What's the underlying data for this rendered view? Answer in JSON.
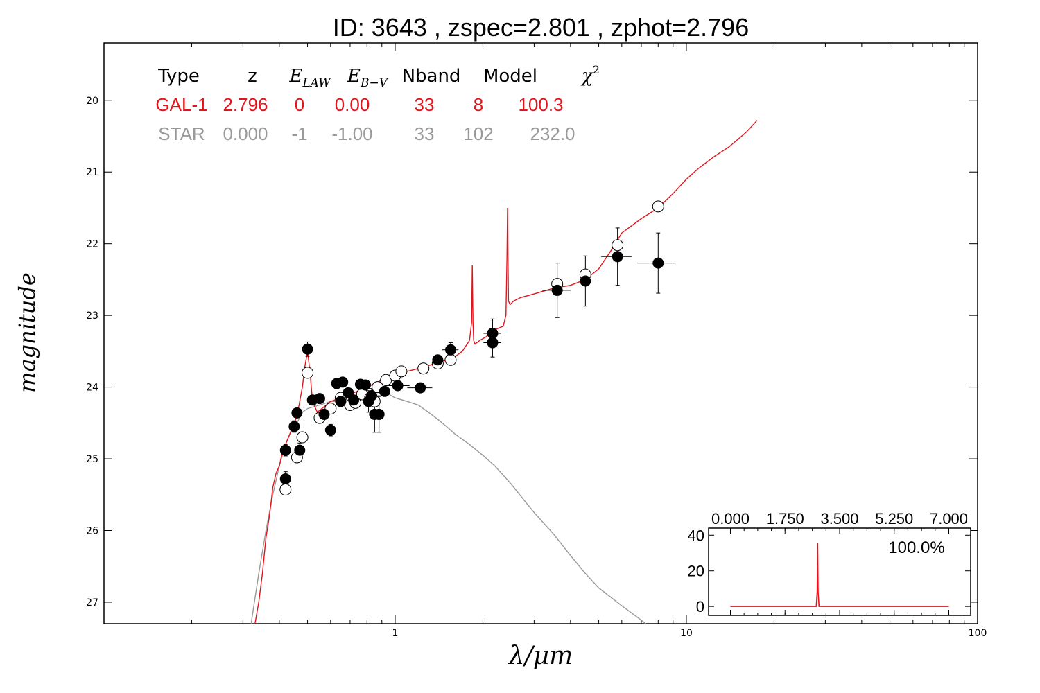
{
  "title": "ID:  3643  , zspec=2.801 , zphot=2.796",
  "colors": {
    "galaxy": "#e3141b",
    "star": "#999999",
    "axis": "#000000"
  },
  "table": {
    "headers": [
      {
        "key": "type",
        "text": "Type",
        "math": false
      },
      {
        "key": "z",
        "text": "z",
        "math": false
      },
      {
        "key": "elaw",
        "base": "E",
        "sub": "LAW",
        "math": true
      },
      {
        "key": "ebv",
        "base": "E",
        "sub": "B−V",
        "math": true
      },
      {
        "key": "nband",
        "text": "Nband",
        "math": false
      },
      {
        "key": "model",
        "text": "Model",
        "math": false
      },
      {
        "key": "chi2",
        "base": "χ",
        "sup": "2",
        "math": true
      }
    ],
    "rows": [
      {
        "name": "galaxy-row",
        "color": "#e3141b",
        "cells": [
          "GAL-1",
          "2.796",
          "0",
          "0.00",
          "33",
          "8",
          "100.3"
        ]
      },
      {
        "name": "star-row",
        "color": "#999999",
        "cells": [
          "STAR",
          "0.000",
          "-1",
          "-1.00",
          "33",
          "102",
          "232.0"
        ]
      }
    ]
  },
  "chart_data": [
    {
      "type": "scatter",
      "xlabel": "λ/μm",
      "ylabel": "magnitude",
      "xscale": "log",
      "xlim": [
        0.1,
        100
      ],
      "ylim": [
        27.3,
        19.2
      ],
      "xticks": [
        {
          "v": 1,
          "label": "1"
        },
        {
          "v": 10,
          "label": "10"
        },
        {
          "v": 100,
          "label": "100"
        }
      ],
      "yticks": [
        20,
        21,
        22,
        23,
        24,
        25,
        26,
        27
      ],
      "series": [
        {
          "kind": "galaxy-model",
          "color": "#e3141b",
          "x": [
            0.33,
            0.34,
            0.35,
            0.36,
            0.37,
            0.38,
            0.39,
            0.4,
            0.41,
            0.42,
            0.43,
            0.44,
            0.45,
            0.46,
            0.47,
            0.48,
            0.49,
            0.5,
            0.51,
            0.52,
            0.54,
            0.56,
            0.6,
            0.65,
            0.7,
            0.75,
            0.8,
            0.85,
            0.9,
            1.0,
            1.05,
            1.1,
            1.15,
            1.2,
            1.3,
            1.4,
            1.5,
            1.6,
            1.7,
            1.8,
            1.83,
            1.84,
            1.85,
            1.86,
            1.88,
            1.95,
            2.05,
            2.2,
            2.35,
            2.4,
            2.42,
            2.43,
            2.44,
            2.45,
            2.48,
            2.55,
            2.7,
            3.0,
            3.5,
            4.0,
            4.5,
            5.0,
            5.5,
            6.0,
            7.0,
            8.0,
            9.0,
            10.0,
            11.0,
            12.5,
            14.0,
            16.0,
            17.5
          ],
          "y": [
            27.3,
            27.0,
            26.6,
            26.1,
            25.8,
            25.4,
            25.2,
            25.1,
            24.9,
            24.8,
            24.7,
            24.6,
            24.5,
            24.4,
            24.2,
            24.0,
            23.7,
            23.5,
            23.8,
            24.2,
            24.35,
            24.3,
            24.2,
            24.15,
            24.1,
            24.05,
            24.0,
            23.95,
            23.9,
            23.85,
            23.8,
            23.78,
            23.76,
            23.74,
            23.7,
            23.66,
            23.62,
            23.58,
            23.5,
            23.35,
            23.1,
            22.3,
            23.1,
            23.35,
            23.4,
            23.35,
            23.3,
            23.2,
            23.15,
            23.0,
            22.2,
            21.5,
            22.2,
            22.8,
            22.85,
            22.8,
            22.75,
            22.7,
            22.62,
            22.58,
            22.5,
            22.35,
            22.1,
            21.85,
            21.65,
            21.5,
            21.3,
            21.1,
            20.95,
            20.78,
            20.65,
            20.45,
            20.28
          ]
        },
        {
          "kind": "star-model",
          "color": "#999999",
          "x": [
            0.32,
            0.34,
            0.36,
            0.38,
            0.4,
            0.42,
            0.44,
            0.46,
            0.48,
            0.5,
            0.55,
            0.6,
            0.65,
            0.7,
            0.75,
            0.8,
            0.85,
            0.9,
            0.95,
            1.0,
            1.1,
            1.2,
            1.3,
            1.4,
            1.5,
            1.6,
            1.8,
            2.0,
            2.2,
            2.5,
            2.8,
            3.0,
            3.5,
            4.0,
            4.5,
            5.0,
            6.0,
            7.0,
            7.5
          ],
          "y": [
            27.3,
            26.6,
            26.0,
            25.5,
            25.1,
            24.8,
            24.6,
            24.5,
            24.35,
            24.3,
            24.25,
            24.2,
            24.2,
            24.2,
            24.15,
            24.12,
            24.12,
            24.12,
            24.1,
            24.15,
            24.2,
            24.25,
            24.35,
            24.45,
            24.55,
            24.65,
            24.8,
            24.95,
            25.1,
            25.35,
            25.6,
            25.75,
            26.05,
            26.35,
            26.6,
            26.8,
            27.05,
            27.25,
            27.35
          ]
        },
        {
          "kind": "observed",
          "fill": "#000000",
          "points": [
            {
              "x": 0.42,
              "y": 24.88,
              "xerr": 0.01,
              "yerr": 0.08
            },
            {
              "x": 0.42,
              "y": 25.28,
              "xerr": 0.01,
              "yerr": 0.1
            },
            {
              "x": 0.45,
              "y": 24.55,
              "xerr": 0.012,
              "yerr": 0.08
            },
            {
              "x": 0.46,
              "y": 24.36,
              "xerr": 0.012,
              "yerr": 0.06
            },
            {
              "x": 0.47,
              "y": 24.88,
              "xerr": 0.012,
              "yerr": 0.1
            },
            {
              "x": 0.5,
              "y": 23.47,
              "xerr": 0.008,
              "yerr": 0.1
            },
            {
              "x": 0.52,
              "y": 24.18,
              "xerr": 0.015,
              "yerr": 0.06
            },
            {
              "x": 0.55,
              "y": 24.16,
              "xerr": 0.015,
              "yerr": 0.06
            },
            {
              "x": 0.57,
              "y": 24.38,
              "xerr": 0.015,
              "yerr": 0.07
            },
            {
              "x": 0.6,
              "y": 24.6,
              "xerr": 0.015,
              "yerr": 0.08
            },
            {
              "x": 0.63,
              "y": 23.95,
              "xerr": 0.02,
              "yerr": 0.06
            },
            {
              "x": 0.65,
              "y": 24.2,
              "xerr": 0.02,
              "yerr": 0.06
            },
            {
              "x": 0.66,
              "y": 23.93,
              "xerr": 0.02,
              "yerr": 0.06
            },
            {
              "x": 0.69,
              "y": 24.08,
              "xerr": 0.02,
              "yerr": 0.06
            },
            {
              "x": 0.72,
              "y": 24.18,
              "xerr": 0.02,
              "yerr": 0.06
            },
            {
              "x": 0.76,
              "y": 23.96,
              "xerr": 0.02,
              "yerr": 0.06
            },
            {
              "x": 0.79,
              "y": 23.97,
              "xerr": 0.02,
              "yerr": 0.06
            },
            {
              "x": 0.81,
              "y": 24.2,
              "xerr": 0.02,
              "yerr": 0.15
            },
            {
              "x": 0.83,
              "y": 24.12,
              "xerr": 0.02,
              "yerr": 0.1
            },
            {
              "x": 0.85,
              "y": 24.38,
              "xerr": 0.02,
              "yerr": 0.25
            },
            {
              "x": 0.88,
              "y": 24.38,
              "xerr": 0.02,
              "yerr": 0.25
            },
            {
              "x": 0.92,
              "y": 24.06,
              "xerr": 0.03,
              "yerr": 0.06
            },
            {
              "x": 1.02,
              "y": 23.98,
              "xerr": 0.1,
              "yerr": 0.06
            },
            {
              "x": 1.22,
              "y": 24.01,
              "xerr": 0.12,
              "yerr": 0.06
            },
            {
              "x": 1.4,
              "y": 23.62,
              "xerr": 0.06,
              "yerr": 0.06
            },
            {
              "x": 1.55,
              "y": 23.48,
              "xerr": 0.1,
              "yerr": 0.1
            },
            {
              "x": 2.16,
              "y": 23.25,
              "xerr": 0.15,
              "yerr": 0.2
            },
            {
              "x": 2.16,
              "y": 23.38,
              "xerr": 0.15,
              "yerr": 0.2
            },
            {
              "x": 3.6,
              "y": 22.65,
              "xerr": 0.4,
              "yerr": 0.38
            },
            {
              "x": 4.5,
              "y": 22.52,
              "xerr": 0.5,
              "yerr": 0.35
            },
            {
              "x": 5.8,
              "y": 22.18,
              "xerr": 0.7,
              "yerr": 0.4
            },
            {
              "x": 8.0,
              "y": 22.27,
              "xerr": 1.2,
              "yerr": 0.42
            }
          ]
        },
        {
          "kind": "model-photometry",
          "fill": "#ffffff",
          "points": [
            {
              "x": 0.42,
              "y": 25.43
            },
            {
              "x": 0.46,
              "y": 24.98
            },
            {
              "x": 0.48,
              "y": 24.7
            },
            {
              "x": 0.5,
              "y": 23.8
            },
            {
              "x": 0.55,
              "y": 24.43
            },
            {
              "x": 0.6,
              "y": 24.3
            },
            {
              "x": 0.65,
              "y": 24.15
            },
            {
              "x": 0.7,
              "y": 24.25
            },
            {
              "x": 0.73,
              "y": 24.22
            },
            {
              "x": 0.77,
              "y": 24.1
            },
            {
              "x": 0.82,
              "y": 24.15
            },
            {
              "x": 0.85,
              "y": 24.2
            },
            {
              "x": 0.87,
              "y": 24.0
            },
            {
              "x": 0.93,
              "y": 23.9
            },
            {
              "x": 1.0,
              "y": 23.84
            },
            {
              "x": 1.05,
              "y": 23.78
            },
            {
              "x": 1.25,
              "y": 23.74
            },
            {
              "x": 1.4,
              "y": 23.67
            },
            {
              "x": 1.55,
              "y": 23.62
            },
            {
              "x": 3.6,
              "y": 22.56
            },
            {
              "x": 4.5,
              "y": 22.43
            },
            {
              "x": 5.8,
              "y": 22.02
            },
            {
              "x": 8.0,
              "y": 21.48
            }
          ]
        }
      ]
    },
    {
      "type": "line",
      "title": "",
      "annotation": "100.0%",
      "xlim": [
        -0.7,
        7.7
      ],
      "ylim": [
        -5,
        44
      ],
      "xticks": [
        "0.000",
        "1.750",
        "3.500",
        "5.250",
        "7.000"
      ],
      "xtick_values": [
        0,
        1.75,
        3.5,
        5.25,
        7
      ],
      "yticks": [
        0,
        20,
        40
      ],
      "series": [
        {
          "name": "",
          "color": "#e3141b",
          "x": [
            0.0,
            2.7,
            2.75,
            2.78,
            2.796,
            2.81,
            2.84,
            2.9,
            7.0
          ],
          "y": [
            0,
            0,
            0,
            8,
            35.5,
            8,
            0,
            0,
            0
          ]
        }
      ]
    }
  ]
}
